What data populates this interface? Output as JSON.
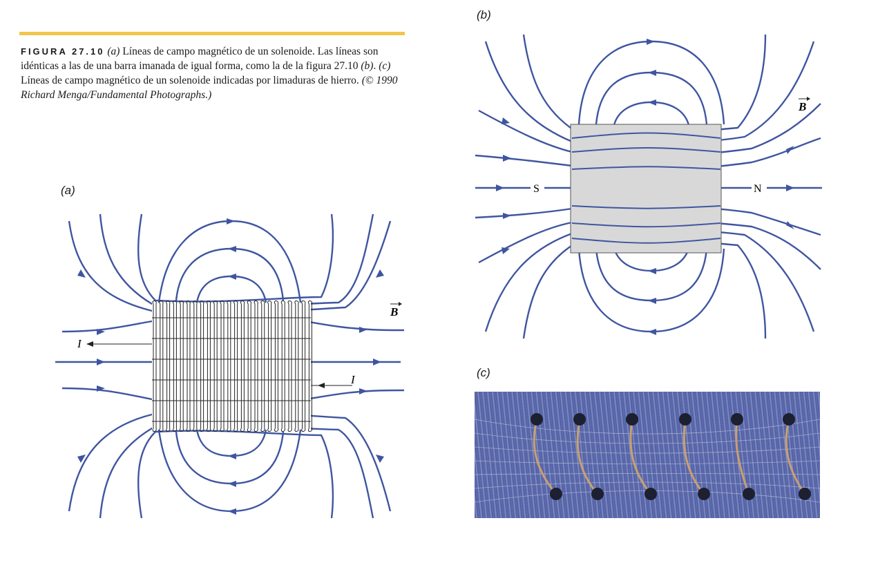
{
  "caption": {
    "figure_label": "FIGURA 27.10",
    "part_a_marker": "(a)",
    "text_1": " Líneas de campo magnético de un solenoide. Las líneas son idénticas a las de una barra imanada de igual forma, como la de la figura 27.10 ",
    "part_b_marker": "(b)",
    "text_2": ". ",
    "part_c_marker": "(c)",
    "text_3": " Líneas de campo magnético de un solenoide indicadas por limaduras de hierro. ",
    "credit": "(© 1990 Richard Menga/Fundamental Photographs.)"
  },
  "panels": {
    "a": {
      "label": "(a)",
      "field_label": "B",
      "current_left": "I",
      "current_right": "I"
    },
    "b": {
      "label": "(b)",
      "field_label": "B",
      "south": "S",
      "north": "N"
    },
    "c": {
      "label": "(c)"
    }
  },
  "colors": {
    "field_line": "#3f55a0",
    "accent_rule": "#f2c64a",
    "magnet_fill": "#d8d8d8",
    "photo_base": "#4d5ca4"
  }
}
